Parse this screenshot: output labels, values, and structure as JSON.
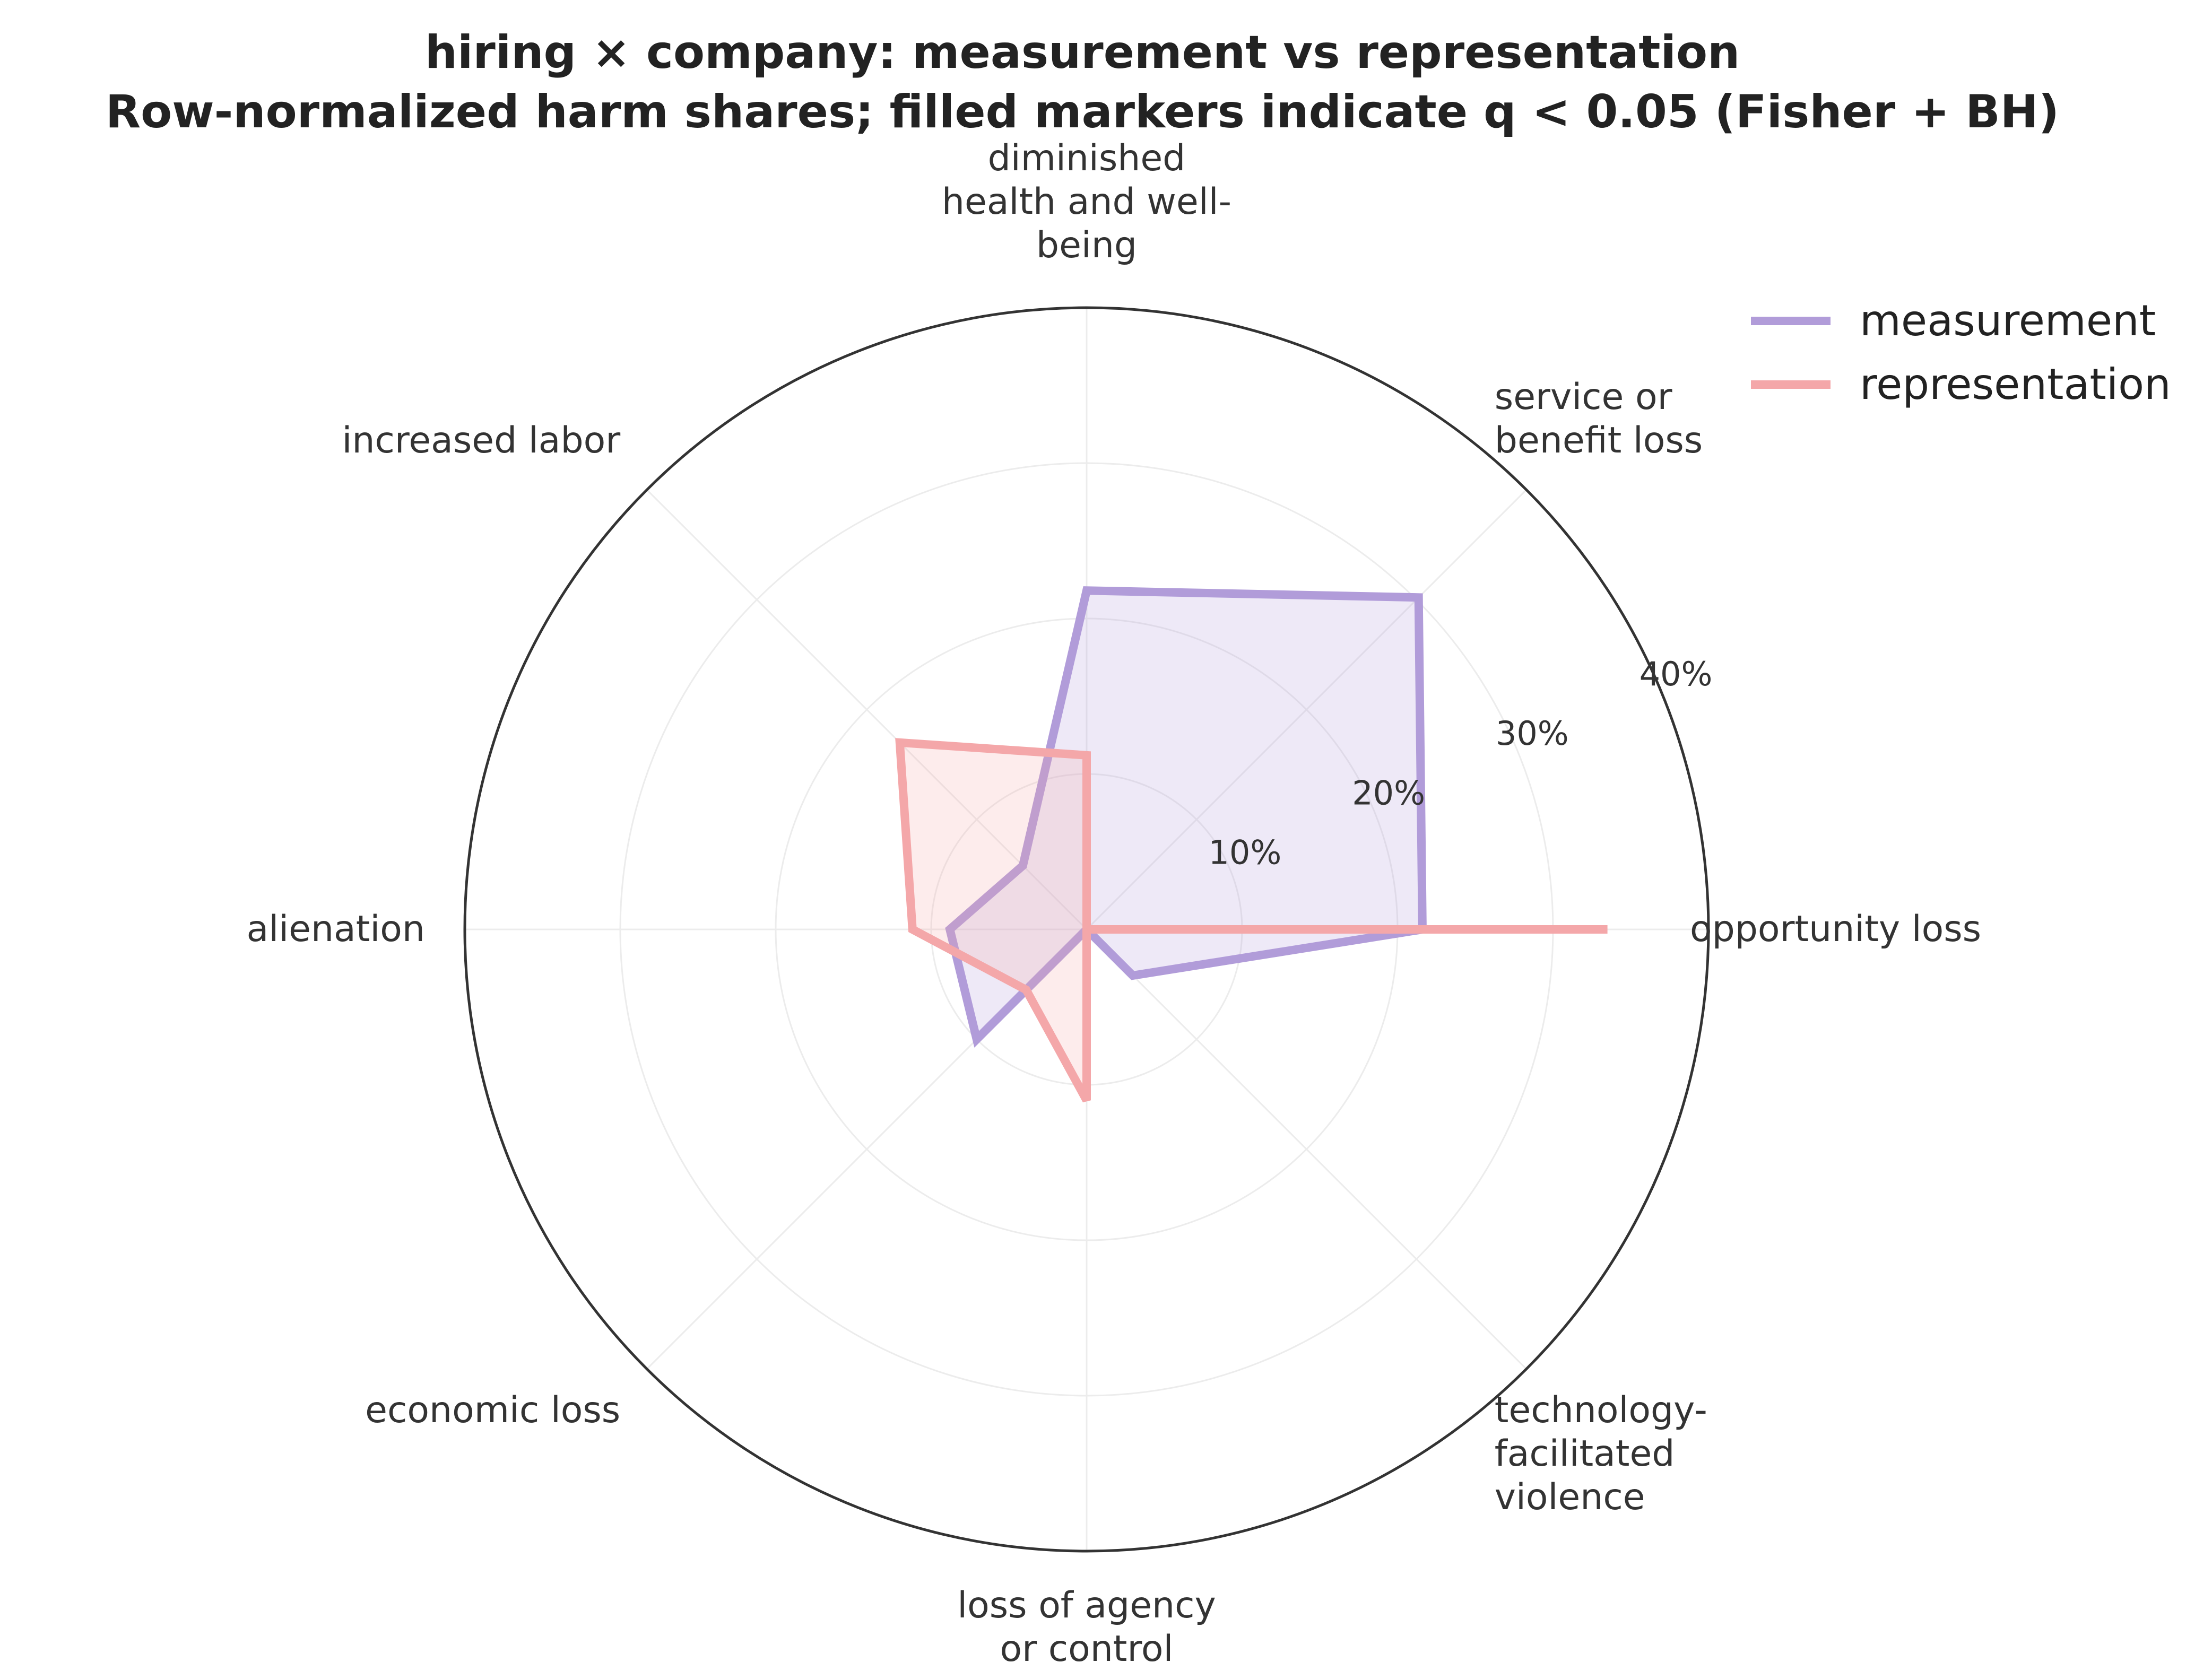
{
  "chart_data": {
    "type": "radar",
    "title": "hiring × company: measurement vs representation",
    "subtitle": "Row-normalized harm shares; filled markers indicate q < 0.05 (Fisher + BH)",
    "categories": [
      [
        "opportunity loss"
      ],
      [
        "service or",
        "benefit loss"
      ],
      [
        "diminished",
        "health and well-",
        "being"
      ],
      [
        "increased labor"
      ],
      [
        "alienation"
      ],
      [
        "economic loss"
      ],
      [
        "loss of agency",
        "or control"
      ],
      [
        "technology-",
        "facilitated",
        "violence"
      ]
    ],
    "radial_ticks": [
      10,
      20,
      30,
      40
    ],
    "radial_tick_labels": [
      "10%",
      "20%",
      "30%",
      "40%"
    ],
    "rmax": 40,
    "grid": true,
    "legend_position": "top-right",
    "series": [
      {
        "name": "measurement",
        "color": "#b19cd9",
        "values": [
          21.6,
          30.2,
          21.8,
          5.8,
          8.8,
          10.0,
          0.0,
          4.2
        ]
      },
      {
        "name": "representation",
        "color": "#f4a7a9",
        "values": [
          33.5,
          0.0,
          11.2,
          17.0,
          11.2,
          5.5,
          11.0,
          0.0
        ]
      }
    ]
  }
}
